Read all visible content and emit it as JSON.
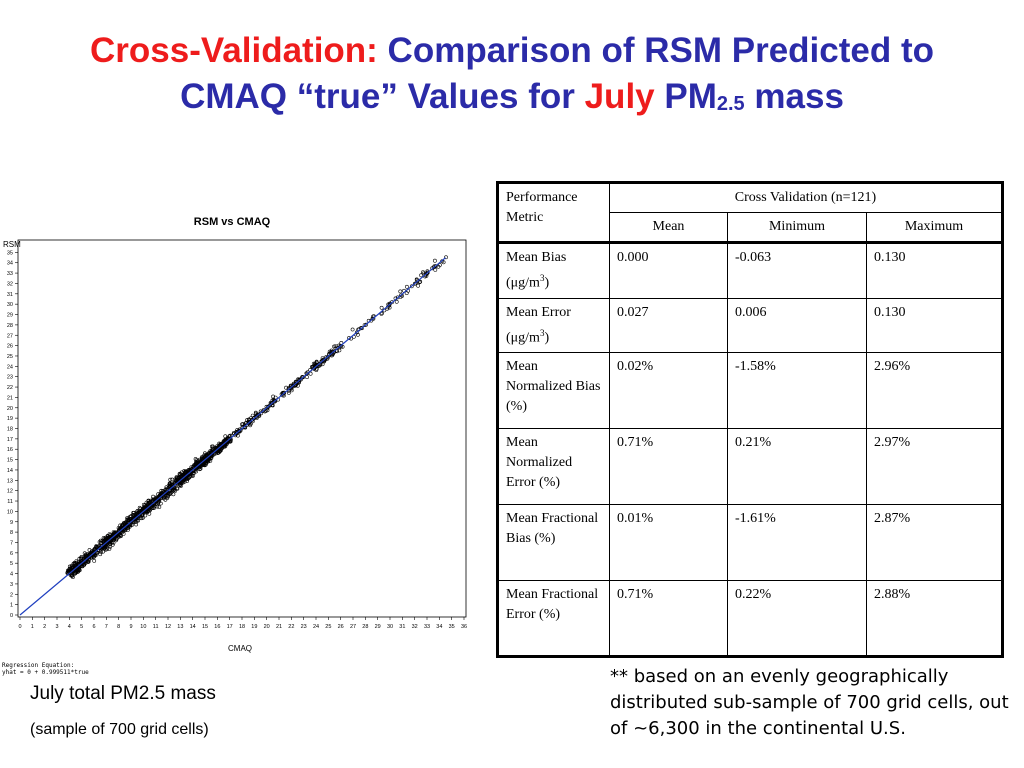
{
  "title": {
    "part1_red": "Cross-Validation",
    "part1_colon": ":",
    "part2": " Comparison of RSM Predicted to",
    "line2_a": "CMAQ “true” Values for ",
    "line2_month": "July",
    "line2_b": " PM",
    "line2_sub": "2.5",
    "line2_c": " mass"
  },
  "plot": {
    "title": "RSM vs CMAQ",
    "ylabel": "RSM",
    "xlabel": "CMAQ",
    "regression_line1": "Regression Equation:",
    "regression_line2": "yhat = 0 + 0.999511*true"
  },
  "chart_data": {
    "type": "scatter",
    "title": "RSM vs CMAQ",
    "xlabel": "CMAQ",
    "ylabel": "RSM",
    "xlim": [
      0,
      36
    ],
    "ylim": [
      0,
      36
    ],
    "x_ticks": [
      0,
      1,
      2,
      3,
      4,
      5,
      6,
      7,
      8,
      9,
      10,
      11,
      12,
      13,
      14,
      15,
      16,
      17,
      18,
      19,
      20,
      21,
      22,
      23,
      24,
      25,
      26,
      27,
      28,
      29,
      30,
      31,
      32,
      33,
      34,
      35,
      36
    ],
    "y_ticks": [
      0,
      1,
      2,
      3,
      4,
      5,
      6,
      7,
      8,
      9,
      10,
      11,
      12,
      13,
      14,
      15,
      16,
      17,
      18,
      19,
      20,
      21,
      22,
      23,
      24,
      25,
      26,
      27,
      28,
      29,
      30,
      31,
      32,
      33,
      34,
      35
    ],
    "regression": {
      "intercept": 0,
      "slope": 0.999511
    },
    "point_range": [
      3.5,
      34.5
    ],
    "colors": {
      "points": "#000000",
      "line": "#1f3fbf"
    }
  },
  "captions": {
    "main": "July total PM2.5 mass",
    "sub": "(sample of 700 grid cells)"
  },
  "table": {
    "metric_header": "Performance Metric",
    "group_header": "Cross Validation (n=121)",
    "columns": [
      "Mean",
      "Minimum",
      "Maximum"
    ],
    "rows": [
      {
        "metric": "Mean Bias",
        "unit_prefix": "(μg/m",
        "unit_sup": "3",
        "unit_suffix": ")",
        "mean": "0.000",
        "min": "-0.063",
        "max": "0.130"
      },
      {
        "metric": "Mean Error",
        "unit_prefix": "(μg/m",
        "unit_sup": "3",
        "unit_suffix": ")",
        "mean": "0.027",
        "min": "0.006",
        "max": "0.130"
      },
      {
        "metric": "Mean Normalized Bias (%)",
        "mean": "0.02%",
        "min": "-1.58%",
        "max": "2.96%"
      },
      {
        "metric": "Mean Normalized Error (%)",
        "mean": "0.71%",
        "min": "0.21%",
        "max": "2.97%"
      },
      {
        "metric": "Mean Fractional Bias (%)",
        "mean": "0.01%",
        "min": "-1.61%",
        "max": "2.87%"
      },
      {
        "metric": "Mean Fractional Error (%)",
        "mean": "0.71%",
        "min": "0.22%",
        "max": "2.88%"
      }
    ]
  },
  "footnote": "**  based on an evenly geographically distributed sub-sample of 700 grid cells, out of ~6,300 in the continental U.S."
}
